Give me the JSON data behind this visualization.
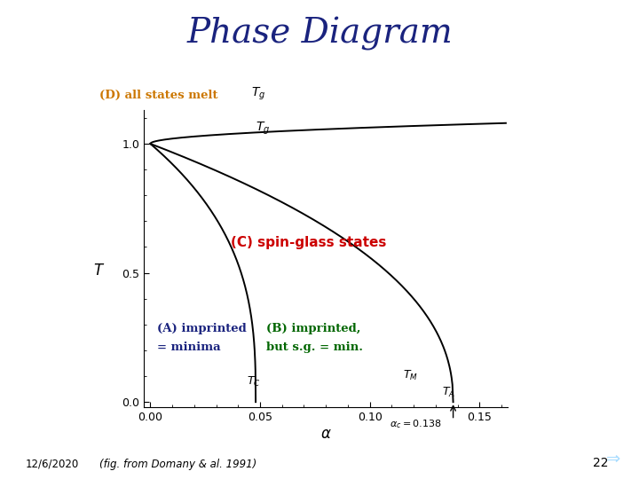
{
  "title": "Phase Diagram",
  "title_color": "#1a237e",
  "title_fontsize": 28,
  "bg_color": "#f0f0f0",
  "inner_bg": "#ffffff",
  "xlabel": "α",
  "ylabel": "T",
  "xlim": [
    -0.003,
    0.163
  ],
  "ylim": [
    -0.02,
    1.13
  ],
  "xticks": [
    0.0,
    0.05,
    0.1,
    0.15
  ],
  "yticks": [
    0.0,
    0.5,
    1.0
  ],
  "label_D": "(D) all states melt",
  "label_D_color": "#cc7700",
  "label_C": "(C) spin-glass states",
  "label_C_color": "#cc0000",
  "label_A_line1": "(A) imprinted",
  "label_A_line2": "= minima",
  "label_A_color": "#1a237e",
  "label_B_line1": "(B) imprinted,",
  "label_B_line2": "but s.g. = min.",
  "label_B_color": "#006600",
  "alpha_c": 0.138,
  "footnote": "12/6/2020",
  "fig_credit": "(fig. from Domany & al. 1991)",
  "page_number": "22"
}
